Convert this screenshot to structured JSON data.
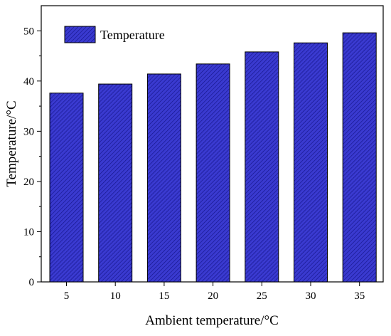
{
  "chart_data": {
    "type": "bar",
    "title": "",
    "xlabel": "Ambient temperature/°C",
    "ylabel": "Temperature/°C",
    "categories": [
      "5",
      "10",
      "15",
      "20",
      "25",
      "30",
      "35"
    ],
    "series": [
      {
        "name": "Temperature",
        "values": [
          37.6,
          39.4,
          41.4,
          43.4,
          45.8,
          47.6,
          49.6
        ]
      }
    ],
    "ylim": [
      0,
      55
    ],
    "yticks": [
      "0",
      "10",
      "20",
      "30",
      "40",
      "50"
    ],
    "grid": false,
    "legend_position": "top-left",
    "bar_color": "#3a3ad0",
    "bar_hatch_color": "#15158a",
    "bar_edge_color": "#000000"
  }
}
